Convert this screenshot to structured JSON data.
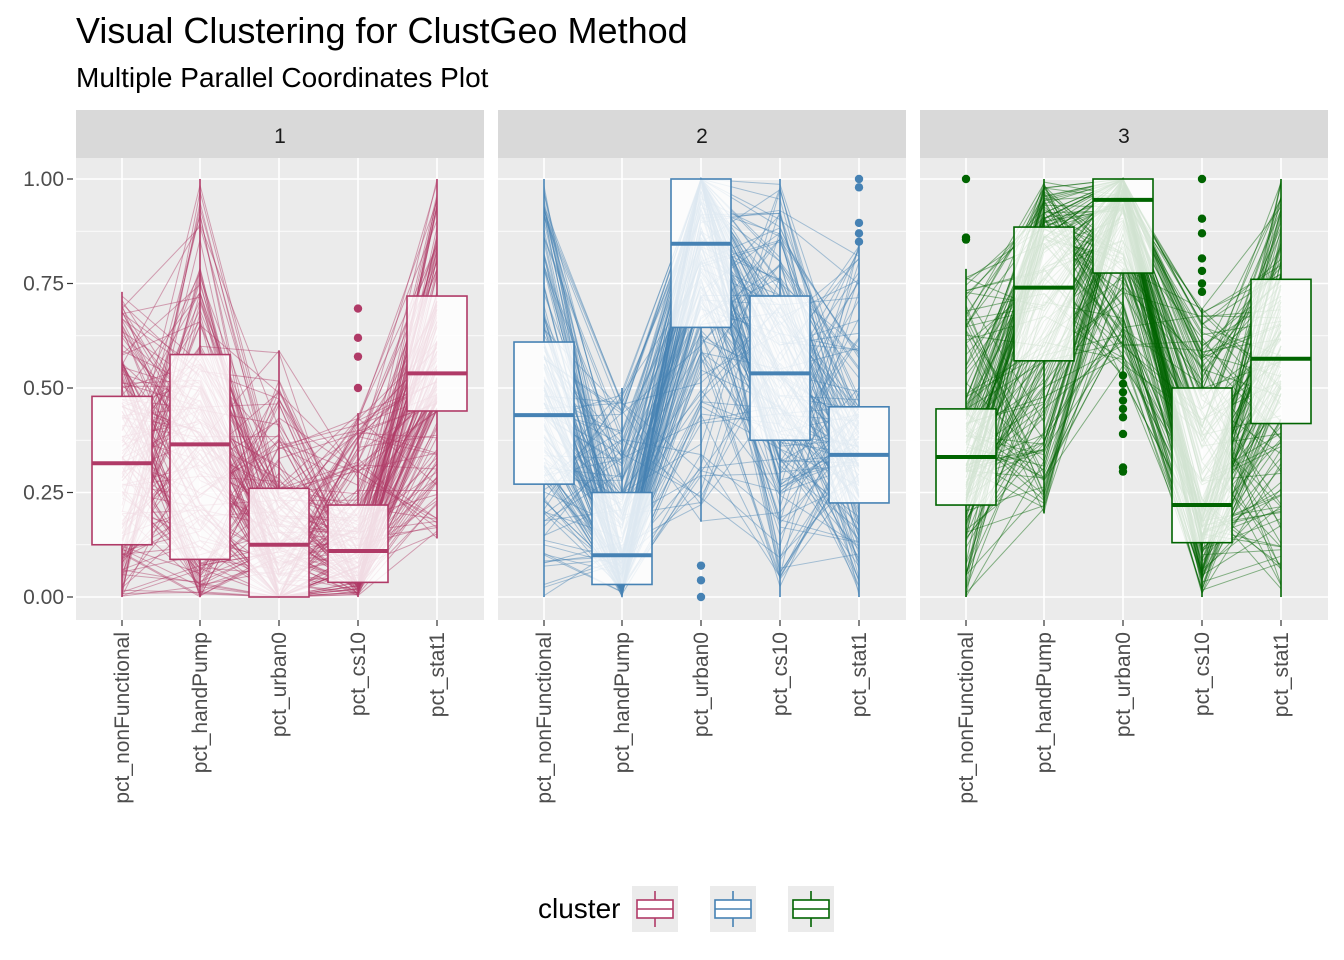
{
  "title": "Visual Clustering for ClustGeo Method",
  "subtitle": "Multiple Parallel Coordinates Plot",
  "chart_data": {
    "type": "parallel_coordinates_boxplot",
    "variables": [
      "pct_nonFunctional",
      "pct_handPump",
      "pct_urban0",
      "pct_cs10",
      "pct_stat1"
    ],
    "ylim": [
      0,
      1.05
    ],
    "yticks": [
      "0.00",
      "0.25",
      "0.50",
      "0.75",
      "1.00"
    ],
    "grid": true,
    "legend_position": "bottom",
    "legend_title": "cluster",
    "panels": [
      {
        "strip": "1",
        "cluster": "1",
        "color": "#b03a67",
        "boxes": [
          {
            "min": 0.0,
            "q1": 0.125,
            "median": 0.32,
            "q3": 0.48,
            "max": 0.73
          },
          {
            "min": 0.0,
            "q1": 0.09,
            "median": 0.365,
            "q3": 0.58,
            "max": 1.0
          },
          {
            "min": 0.0,
            "q1": 0.0,
            "median": 0.125,
            "q3": 0.26,
            "max": 0.59
          },
          {
            "min": 0.0,
            "q1": 0.035,
            "median": 0.11,
            "q3": 0.22,
            "max": 0.44
          },
          {
            "min": 0.14,
            "q1": 0.445,
            "median": 0.535,
            "q3": 0.72,
            "max": 1.0
          }
        ],
        "outliers": [
          [],
          [],
          [],
          [
            0.5,
            0.575,
            0.62,
            0.69
          ],
          []
        ]
      },
      {
        "strip": "2",
        "cluster": "2",
        "color": "#4682b4",
        "boxes": [
          {
            "min": 0.0,
            "q1": 0.27,
            "median": 0.435,
            "q3": 0.61,
            "max": 1.0
          },
          {
            "min": 0.0,
            "q1": 0.03,
            "median": 0.1,
            "q3": 0.25,
            "max": 0.5
          },
          {
            "min": 0.18,
            "q1": 0.645,
            "median": 0.845,
            "q3": 1.0,
            "max": 1.0
          },
          {
            "min": 0.0,
            "q1": 0.375,
            "median": 0.535,
            "q3": 0.72,
            "max": 1.0
          },
          {
            "min": 0.0,
            "q1": 0.225,
            "median": 0.34,
            "q3": 0.455,
            "max": 0.85
          }
        ],
        "outliers": [
          [],
          [],
          [
            0.0,
            0.04,
            0.075
          ],
          [],
          [
            0.85,
            0.87,
            0.895,
            0.98,
            1.0
          ]
        ]
      },
      {
        "strip": "3",
        "cluster": "3",
        "color": "#006400",
        "boxes": [
          {
            "min": 0.0,
            "q1": 0.22,
            "median": 0.335,
            "q3": 0.45,
            "max": 0.785
          },
          {
            "min": 0.2,
            "q1": 0.565,
            "median": 0.74,
            "q3": 0.885,
            "max": 1.0
          },
          {
            "min": 0.52,
            "q1": 0.775,
            "median": 0.95,
            "q3": 1.0,
            "max": 1.0
          },
          {
            "min": 0.0,
            "q1": 0.13,
            "median": 0.22,
            "q3": 0.5,
            "max": 0.69
          },
          {
            "min": 0.0,
            "q1": 0.415,
            "median": 0.57,
            "q3": 0.76,
            "max": 1.0
          }
        ],
        "outliers": [
          [
            0.855,
            0.86,
            1.0
          ],
          [],
          [
            0.3,
            0.31,
            0.39,
            0.43,
            0.45,
            0.47,
            0.49,
            0.51,
            0.53
          ],
          [
            0.73,
            0.75,
            0.78,
            0.81,
            0.87,
            0.905,
            1.0
          ],
          []
        ]
      }
    ]
  }
}
